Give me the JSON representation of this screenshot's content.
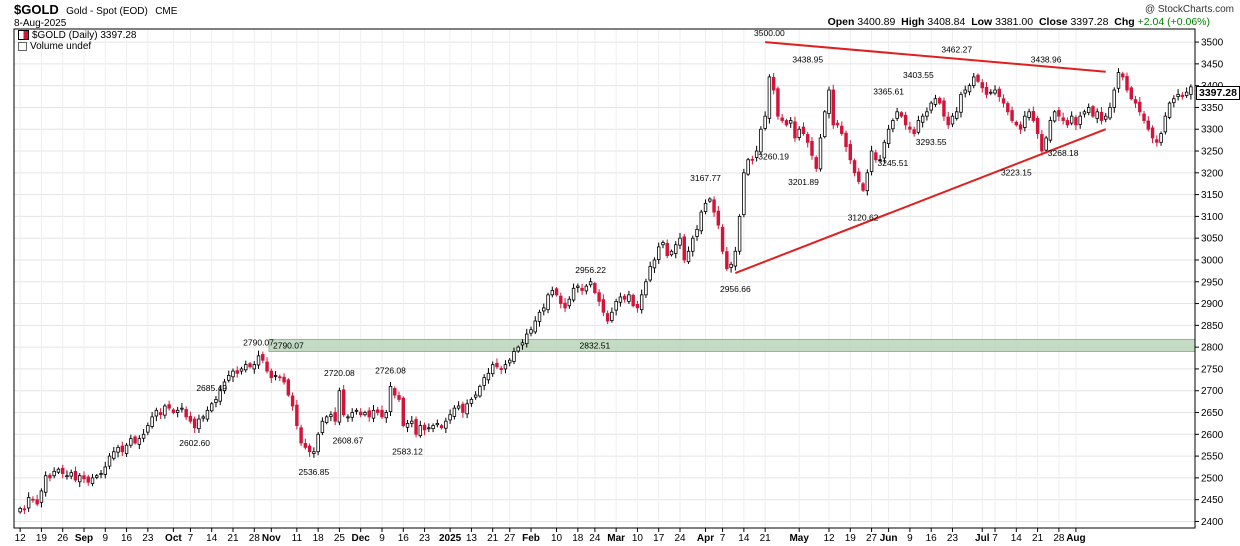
{
  "header": {
    "symbol": "$GOLD",
    "name": "Gold - Spot (EOD)",
    "exchange": "CME",
    "date": "8-Aug-2025",
    "watermark": "@ StockCharts.com",
    "ohlc": [
      {
        "label": "Open",
        "value": "3400.89"
      },
      {
        "label": "High",
        "value": "3408.84"
      },
      {
        "label": "Low",
        "value": "3381.00"
      },
      {
        "label": "Close",
        "value": "3397.28"
      },
      {
        "label": "Chg",
        "value": "+2.04 (+0.06%)"
      }
    ],
    "change_color": "#008000",
    "legend_price": "$GOLD (Daily) 3397.28",
    "legend_volume": "Volume undef"
  },
  "chart_data": {
    "type": "candlestick",
    "y_range": [
      2385,
      3530
    ],
    "y_ticks": [
      2400,
      2450,
      2500,
      2550,
      2600,
      2650,
      2700,
      2750,
      2800,
      2850,
      2900,
      2950,
      3000,
      3050,
      3100,
      3150,
      3200,
      3250,
      3300,
      3350,
      3400,
      3450,
      3500
    ],
    "last_price": "3397.28",
    "colors": {
      "up": "#000000",
      "down": "#d2143a",
      "trendline": "#e02020",
      "zone": "#b9d6b9"
    },
    "x_ticks": [
      {
        "label": "12",
        "i": 0
      },
      {
        "label": "19",
        "i": 5
      },
      {
        "label": "26",
        "i": 10
      },
      {
        "label": "Sep",
        "i": 15,
        "bold": true
      },
      {
        "label": "9",
        "i": 20
      },
      {
        "label": "16",
        "i": 25
      },
      {
        "label": "23",
        "i": 30
      },
      {
        "label": "Oct",
        "i": 36,
        "bold": true
      },
      {
        "label": "7",
        "i": 40
      },
      {
        "label": "14",
        "i": 45
      },
      {
        "label": "21",
        "i": 50
      },
      {
        "label": "28",
        "i": 55
      },
      {
        "label": "Nov",
        "i": 59,
        "bold": true
      },
      {
        "label": "11",
        "i": 65
      },
      {
        "label": "18",
        "i": 70
      },
      {
        "label": "25",
        "i": 75
      },
      {
        "label": "Dec",
        "i": 80,
        "bold": true
      },
      {
        "label": "9",
        "i": 85
      },
      {
        "label": "16",
        "i": 90
      },
      {
        "label": "23",
        "i": 95
      },
      {
        "label": "2025",
        "i": 101,
        "bold": true
      },
      {
        "label": "13",
        "i": 106
      },
      {
        "label": "21",
        "i": 111
      },
      {
        "label": "27",
        "i": 115
      },
      {
        "label": "Feb",
        "i": 120,
        "bold": true
      },
      {
        "label": "10",
        "i": 126
      },
      {
        "label": "18",
        "i": 131
      },
      {
        "label": "24",
        "i": 135
      },
      {
        "label": "Mar",
        "i": 140,
        "bold": true
      },
      {
        "label": "10",
        "i": 145
      },
      {
        "label": "17",
        "i": 150
      },
      {
        "label": "24",
        "i": 155
      },
      {
        "label": "Apr",
        "i": 161,
        "bold": true
      },
      {
        "label": "7",
        "i": 165
      },
      {
        "label": "14",
        "i": 170
      },
      {
        "label": "21",
        "i": 175
      },
      {
        "label": "May",
        "i": 183,
        "bold": true
      },
      {
        "label": "12",
        "i": 190
      },
      {
        "label": "19",
        "i": 195
      },
      {
        "label": "27",
        "i": 200
      },
      {
        "label": "Jun",
        "i": 204,
        "bold": true
      },
      {
        "label": "9",
        "i": 209
      },
      {
        "label": "16",
        "i": 214
      },
      {
        "label": "23",
        "i": 219
      },
      {
        "label": "Jul",
        "i": 226,
        "bold": true
      },
      {
        "label": "7",
        "i": 229
      },
      {
        "label": "14",
        "i": 234
      },
      {
        "label": "21",
        "i": 239
      },
      {
        "label": "28",
        "i": 244
      },
      {
        "label": "Aug",
        "i": 248,
        "bold": true
      }
    ],
    "closes": [
      2430,
      2428,
      2455,
      2450,
      2440,
      2470,
      2505,
      2500,
      2515,
      2520,
      2510,
      2505,
      2512,
      2495,
      2505,
      2498,
      2490,
      2500,
      2505,
      2510,
      2525,
      2550,
      2560,
      2570,
      2560,
      2575,
      2590,
      2580,
      2590,
      2600,
      2620,
      2640,
      2655,
      2645,
      2665,
      2660,
      2650,
      2655,
      2660,
      2640,
      2630,
      2615,
      2635,
      2640,
      2655,
      2670,
      2680,
      2700,
      2720,
      2735,
      2745,
      2740,
      2750,
      2760,
      2755,
      2760,
      2780,
      2770,
      2745,
      2730,
      2735,
      2730,
      2720,
      2690,
      2665,
      2620,
      2580,
      2570,
      2560,
      2560,
      2600,
      2630,
      2640,
      2645,
      2630,
      2700,
      2645,
      2640,
      2650,
      2655,
      2645,
      2650,
      2640,
      2655,
      2650,
      2640,
      2650,
      2710,
      2690,
      2680,
      2620,
      2625,
      2630,
      2600,
      2620,
      2610,
      2615,
      2620,
      2625,
      2615,
      2630,
      2645,
      2660,
      2665,
      2650,
      2670,
      2680,
      2690,
      2710,
      2730,
      2740,
      2760,
      2755,
      2750,
      2760,
      2770,
      2790,
      2800,
      2810,
      2830,
      2840,
      2860,
      2880,
      2890,
      2920,
      2930,
      2920,
      2900,
      2890,
      2910,
      2935,
      2940,
      2930,
      2940,
      2950,
      2925,
      2905,
      2880,
      2860,
      2880,
      2905,
      2915,
      2910,
      2920,
      2895,
      2890,
      2920,
      2950,
      2985,
      3000,
      3030,
      3040,
      3010,
      3020,
      3035,
      3050,
      3000,
      3020,
      3050,
      3070,
      3110,
      3130,
      3140,
      3110,
      3080,
      3020,
      2980,
      2990,
      3020,
      3100,
      3200,
      3230,
      3230,
      3250,
      3300,
      3330,
      3420,
      3390,
      3330,
      3320,
      3310,
      3320,
      3280,
      3300,
      3290,
      3270,
      3240,
      3210,
      3280,
      3340,
      3390,
      3310,
      3310,
      3290,
      3260,
      3230,
      3200,
      3180,
      3160,
      3200,
      3250,
      3230,
      3230,
      3270,
      3300,
      3320,
      3340,
      3330,
      3310,
      3300,
      3290,
      3320,
      3330,
      3340,
      3360,
      3370,
      3360,
      3330,
      3310,
      3330,
      3340,
      3380,
      3390,
      3400,
      3420,
      3410,
      3395,
      3380,
      3385,
      3390,
      3375,
      3360,
      3340,
      3320,
      3310,
      3300,
      3330,
      3340,
      3320,
      3290,
      3250,
      3280,
      3320,
      3340,
      3330,
      3320,
      3310,
      3330,
      3310,
      3330,
      3340,
      3350,
      3330,
      3340,
      3320,
      3330,
      3350,
      3390,
      3430,
      3420,
      3390,
      3370,
      3360,
      3340,
      3320,
      3300,
      3280,
      3270,
      3290,
      3330,
      3360,
      3370,
      3380,
      3375,
      3385,
      3397.28
    ],
    "annotations": [
      {
        "text": "2685.49",
        "i": 45,
        "v": 2685.49,
        "pos": "above"
      },
      {
        "text": "2602.60",
        "i": 41,
        "v": 2602.6,
        "pos": "below"
      },
      {
        "text": "2790.07",
        "i": 56,
        "v": 2790.07,
        "pos": "above"
      },
      {
        "text": "2536.85",
        "i": 69,
        "v": 2536.85,
        "pos": "below"
      },
      {
        "text": "2720.08",
        "i": 75,
        "v": 2720.08,
        "pos": "above"
      },
      {
        "text": "2608.67",
        "i": 77,
        "v": 2608.67,
        "pos": "below"
      },
      {
        "text": "2726.08",
        "i": 87,
        "v": 2726.08,
        "pos": "above"
      },
      {
        "text": "2583.12",
        "i": 91,
        "v": 2583.12,
        "pos": "below"
      },
      {
        "text": "2832.51",
        "i": 135,
        "v": 2832.51,
        "pos": "above"
      },
      {
        "text": "2956.22",
        "i": 134,
        "v": 2956.22,
        "pos": "above"
      },
      {
        "text": "3167.77",
        "i": 161,
        "v": 3167.77,
        "pos": "above"
      },
      {
        "text": "2956.66",
        "i": 168,
        "v": 2956.66,
        "pos": "below"
      },
      {
        "text": "3500.00",
        "i": 176,
        "v": 3500,
        "pos": "above"
      },
      {
        "text": "3260.19",
        "i": 177,
        "v": 3260.19,
        "pos": "below"
      },
      {
        "text": "3438.95",
        "i": 185,
        "v": 3438.95,
        "pos": "above"
      },
      {
        "text": "3201.89",
        "i": 184,
        "v": 3201.89,
        "pos": "below"
      },
      {
        "text": "3120.62",
        "i": 198,
        "v": 3120.62,
        "pos": "below"
      },
      {
        "text": "3365.61",
        "i": 204,
        "v": 3365.61,
        "pos": "above"
      },
      {
        "text": "3245.51",
        "i": 205,
        "v": 3245.51,
        "pos": "below"
      },
      {
        "text": "3403.55",
        "i": 211,
        "v": 3403.55,
        "pos": "above"
      },
      {
        "text": "3293.55",
        "i": 214,
        "v": 3293.55,
        "pos": "below"
      },
      {
        "text": "3462.27",
        "i": 220,
        "v": 3462.27,
        "pos": "above"
      },
      {
        "text": "3223.15",
        "i": 234,
        "v": 3223.15,
        "pos": "below"
      },
      {
        "text": "3438.96",
        "i": 241,
        "v": 3438.96,
        "pos": "above"
      },
      {
        "text": "3268.18",
        "i": 245,
        "v": 3268.18,
        "pos": "below"
      }
    ],
    "trendlines": [
      {
        "from": {
          "i": 175,
          "v": 3500
        },
        "to": {
          "i": 255,
          "v": 3432
        }
      },
      {
        "from": {
          "i": 168,
          "v": 2970
        },
        "to": {
          "i": 255,
          "v": 3300
        }
      }
    ],
    "zone": {
      "from": 2790.07,
      "to": 2790.07,
      "label_left": "2790.07",
      "label_mid": "2832.51"
    }
  }
}
